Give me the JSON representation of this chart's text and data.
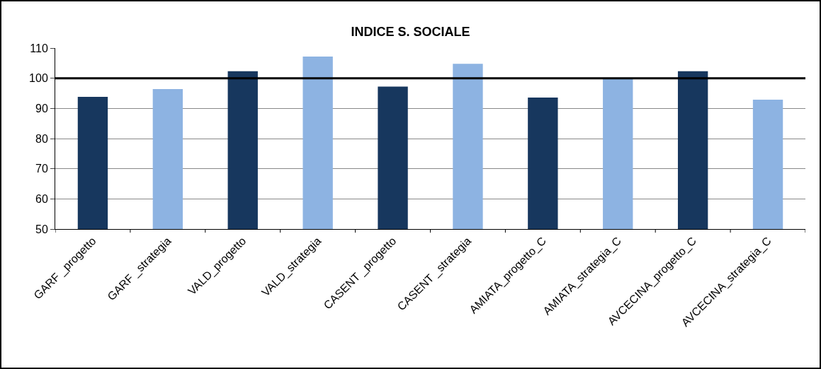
{
  "chart_data": {
    "type": "bar",
    "title": "INDICE S. SOCIALE",
    "categories": [
      "GARF _progetto",
      "GARF _strategia",
      "VALD_progetto",
      "VALD_strategia",
      "CASENT _progetto",
      "CASENT _strategia",
      "AMIATA_progetto_C",
      "AMIATA_strategia_C",
      "AVCECINA_progetto_C",
      "AVCECINA_strategia_C"
    ],
    "values": [
      93.8,
      96.4,
      102.3,
      107.2,
      97.2,
      104.8,
      93.6,
      100.1,
      102.3,
      92.9
    ],
    "colors": [
      "#17375e",
      "#8db3e2",
      "#17375e",
      "#8db3e2",
      "#17375e",
      "#8db3e2",
      "#17375e",
      "#8db3e2",
      "#17375e",
      "#8db3e2"
    ],
    "ylim": [
      50,
      110
    ],
    "yticks": [
      50,
      60,
      70,
      80,
      90,
      100,
      110
    ],
    "grid": "y",
    "ref_lines": [
      {
        "axis": "y",
        "value": 100,
        "color": "#000000",
        "line_style": "solid"
      }
    ]
  }
}
